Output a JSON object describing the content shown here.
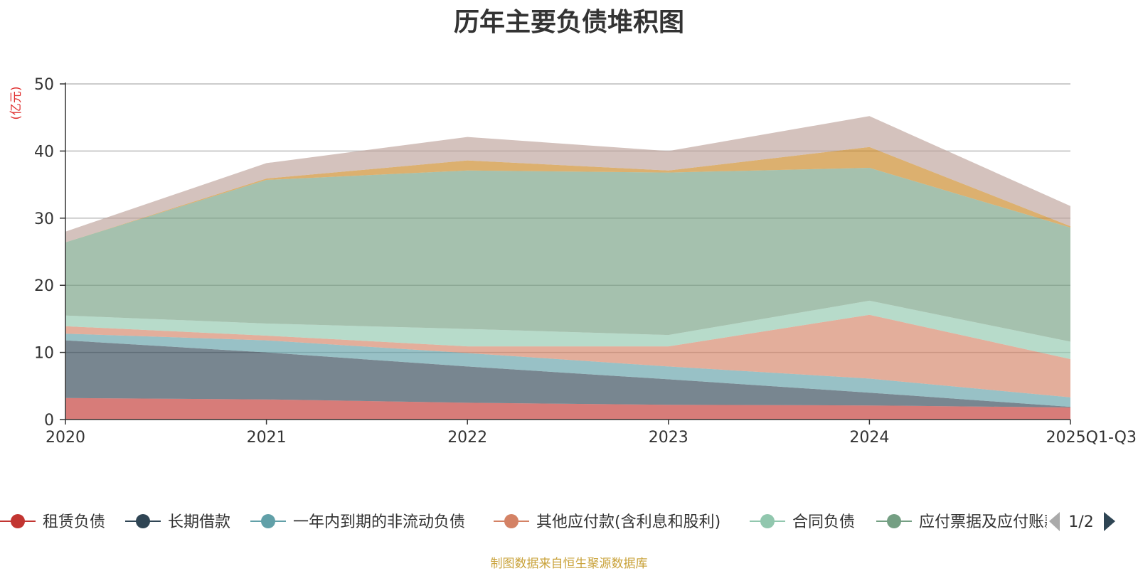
{
  "chart_data": {
    "type": "area",
    "stacked": true,
    "title": "历年主要负债堆积图",
    "ylabel": "(亿元)",
    "xlabel": "",
    "ylim": [
      0,
      50
    ],
    "yticks": [
      0,
      10,
      20,
      30,
      40,
      50
    ],
    "categories": [
      "2020",
      "2021",
      "2022",
      "2023",
      "2024",
      "2025Q1-Q3"
    ],
    "grid": true,
    "series": [
      {
        "name": "租赁负债",
        "color": "#c23531",
        "values": [
          3.2,
          3.0,
          2.5,
          2.2,
          2.1,
          1.8
        ]
      },
      {
        "name": "长期借款",
        "color": "#2f4554",
        "values": [
          8.6,
          7.0,
          5.4,
          3.8,
          1.9,
          0.1
        ]
      },
      {
        "name": "一年内到期的非流动负债",
        "color": "#61a0a8",
        "values": [
          1.0,
          1.8,
          2.0,
          1.9,
          2.1,
          1.4
        ]
      },
      {
        "name": "其他应付款(含利息和股利)",
        "color": "#d48265",
        "values": [
          1.1,
          0.7,
          1.0,
          3.0,
          9.5,
          5.7
        ]
      },
      {
        "name": "合同负债",
        "color": "#91c7ae",
        "values": [
          1.6,
          1.8,
          2.6,
          1.7,
          2.1,
          2.6
        ]
      },
      {
        "name": "应付票据及应付账款",
        "color": "#749f83",
        "values": [
          10.9,
          21.4,
          23.6,
          24.2,
          19.8,
          17.0
        ]
      },
      {
        "name": "page2-series-1",
        "color": "#ca8622",
        "hidden_in_legend": true,
        "values": [
          0.0,
          0.2,
          1.5,
          0.3,
          3.1,
          0.2
        ]
      },
      {
        "name": "page2-series-2",
        "color": "#bda29a",
        "hidden_in_legend": true,
        "values": [
          1.6,
          2.3,
          3.5,
          2.9,
          4.6,
          3.0
        ]
      }
    ],
    "legend_position": "bottom",
    "legend_page": "1/2"
  },
  "source_note": "制图数据来自恒生聚源数据库"
}
